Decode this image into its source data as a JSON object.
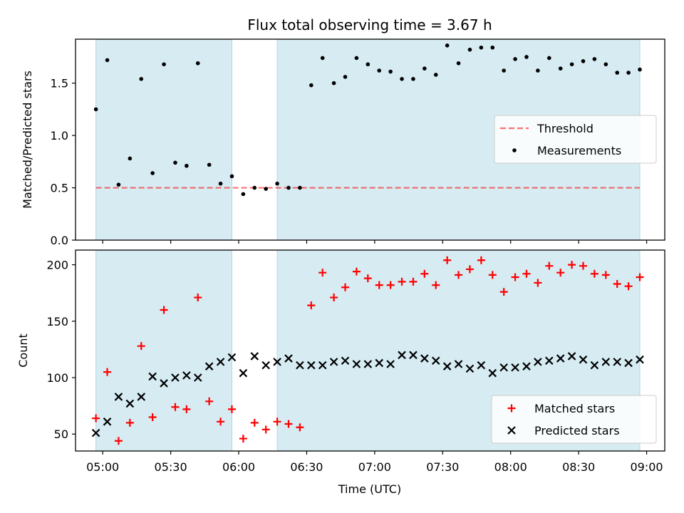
{
  "figure": {
    "title": "Flux total observing time = 3.67 h"
  },
  "colors": {
    "shade": "#add8e6",
    "threshold": "#ff0000",
    "measurement": "#000000",
    "matched": "#ff0000",
    "predicted": "#000000"
  },
  "chart_data": [
    {
      "type": "scatter",
      "ylabel": "Matched/Predicted stars",
      "ylim": [
        0,
        1.92
      ],
      "yticks": [
        0.0,
        0.5,
        1.0,
        1.5
      ],
      "ytick_labels": [
        "0.0",
        "0.5",
        "1.0",
        "1.5"
      ],
      "xlim": [
        "04:48",
        "09:08"
      ],
      "shaded_intervals": [
        [
          "04:57",
          "05:57"
        ],
        [
          "06:17",
          "08:57"
        ]
      ],
      "legend": {
        "placement": "center-right",
        "entries": [
          "Threshold",
          "Measurements"
        ]
      },
      "threshold": {
        "name": "Threshold",
        "value": 0.5,
        "x_range": [
          "04:57",
          "08:57"
        ],
        "style": "dashed"
      },
      "series": [
        {
          "name": "Measurements",
          "marker": "dot",
          "points": [
            [
              "04:57",
              1.25
            ],
            [
              "05:02",
              1.72
            ],
            [
              "05:07",
              0.53
            ],
            [
              "05:12",
              0.78
            ],
            [
              "05:17",
              1.54
            ],
            [
              "05:22",
              0.64
            ],
            [
              "05:27",
              1.68
            ],
            [
              "05:32",
              0.74
            ],
            [
              "05:37",
              0.71
            ],
            [
              "05:42",
              1.69
            ],
            [
              "05:47",
              0.72
            ],
            [
              "05:52",
              0.54
            ],
            [
              "05:57",
              0.61
            ],
            [
              "06:02",
              0.44
            ],
            [
              "06:07",
              0.5
            ],
            [
              "06:12",
              0.49
            ],
            [
              "06:17",
              0.54
            ],
            [
              "06:22",
              0.5
            ],
            [
              "06:27",
              0.5
            ],
            [
              "06:32",
              1.48
            ],
            [
              "06:37",
              1.74
            ],
            [
              "06:42",
              1.5
            ],
            [
              "06:47",
              1.56
            ],
            [
              "06:52",
              1.74
            ],
            [
              "06:57",
              1.68
            ],
            [
              "07:02",
              1.62
            ],
            [
              "07:07",
              1.61
            ],
            [
              "07:12",
              1.54
            ],
            [
              "07:17",
              1.54
            ],
            [
              "07:22",
              1.64
            ],
            [
              "07:27",
              1.58
            ],
            [
              "07:32",
              1.86
            ],
            [
              "07:37",
              1.69
            ],
            [
              "07:42",
              1.82
            ],
            [
              "07:47",
              1.84
            ],
            [
              "07:52",
              1.84
            ],
            [
              "07:57",
              1.62
            ],
            [
              "08:02",
              1.73
            ],
            [
              "08:07",
              1.75
            ],
            [
              "08:12",
              1.62
            ],
            [
              "08:17",
              1.74
            ],
            [
              "08:22",
              1.64
            ],
            [
              "08:27",
              1.68
            ],
            [
              "08:32",
              1.71
            ],
            [
              "08:37",
              1.73
            ],
            [
              "08:42",
              1.68
            ],
            [
              "08:47",
              1.6
            ],
            [
              "08:52",
              1.6
            ],
            [
              "08:57",
              1.63
            ]
          ]
        }
      ]
    },
    {
      "type": "scatter",
      "xlabel": "Time (UTC)",
      "ylabel": "Count",
      "ylim": [
        35,
        213
      ],
      "yticks": [
        50,
        100,
        150,
        200
      ],
      "ytick_labels": [
        "50",
        "100",
        "150",
        "200"
      ],
      "xlim": [
        "04:48",
        "09:08"
      ],
      "xticks": [
        "05:00",
        "05:30",
        "06:00",
        "06:30",
        "07:00",
        "07:30",
        "08:00",
        "08:30",
        "09:00"
      ],
      "xtick_labels": [
        "05:00",
        "05:30",
        "06:00",
        "06:30",
        "07:00",
        "07:30",
        "08:00",
        "08:30",
        "09:00"
      ],
      "shaded_intervals": [
        [
          "04:57",
          "05:57"
        ],
        [
          "06:17",
          "08:57"
        ]
      ],
      "legend": {
        "placement": "lower-right",
        "entries": [
          "Matched stars",
          "Predicted stars"
        ]
      },
      "series": [
        {
          "name": "Matched stars",
          "marker": "plus",
          "points": [
            [
              "04:57",
              64
            ],
            [
              "05:02",
              105
            ],
            [
              "05:07",
              44
            ],
            [
              "05:12",
              60
            ],
            [
              "05:17",
              128
            ],
            [
              "05:22",
              65
            ],
            [
              "05:27",
              160
            ],
            [
              "05:32",
              74
            ],
            [
              "05:37",
              72
            ],
            [
              "05:42",
              171
            ],
            [
              "05:47",
              79
            ],
            [
              "05:52",
              61
            ],
            [
              "05:57",
              72
            ],
            [
              "06:02",
              46
            ],
            [
              "06:07",
              60
            ],
            [
              "06:12",
              54
            ],
            [
              "06:17",
              61
            ],
            [
              "06:22",
              59
            ],
            [
              "06:27",
              56
            ],
            [
              "06:32",
              164
            ],
            [
              "06:37",
              193
            ],
            [
              "06:42",
              171
            ],
            [
              "06:47",
              180
            ],
            [
              "06:52",
              194
            ],
            [
              "06:57",
              188
            ],
            [
              "07:02",
              182
            ],
            [
              "07:07",
              182
            ],
            [
              "07:12",
              185
            ],
            [
              "07:17",
              185
            ],
            [
              "07:22",
              192
            ],
            [
              "07:27",
              182
            ],
            [
              "07:32",
              204
            ],
            [
              "07:37",
              191
            ],
            [
              "07:42",
              196
            ],
            [
              "07:47",
              204
            ],
            [
              "07:52",
              191
            ],
            [
              "07:57",
              176
            ],
            [
              "08:02",
              189
            ],
            [
              "08:07",
              192
            ],
            [
              "08:12",
              184
            ],
            [
              "08:17",
              199
            ],
            [
              "08:22",
              193
            ],
            [
              "08:27",
              200
            ],
            [
              "08:32",
              199
            ],
            [
              "08:37",
              192
            ],
            [
              "08:42",
              191
            ],
            [
              "08:47",
              183
            ],
            [
              "08:52",
              181
            ],
            [
              "08:57",
              189
            ]
          ]
        },
        {
          "name": "Predicted stars",
          "marker": "x",
          "points": [
            [
              "04:57",
              51
            ],
            [
              "05:02",
              61
            ],
            [
              "05:07",
              83
            ],
            [
              "05:12",
              77
            ],
            [
              "05:17",
              83
            ],
            [
              "05:22",
              101
            ],
            [
              "05:27",
              95
            ],
            [
              "05:32",
              100
            ],
            [
              "05:37",
              102
            ],
            [
              "05:42",
              100
            ],
            [
              "05:47",
              110
            ],
            [
              "05:52",
              114
            ],
            [
              "05:57",
              118
            ],
            [
              "06:02",
              104
            ],
            [
              "06:07",
              119
            ],
            [
              "06:12",
              111
            ],
            [
              "06:17",
              114
            ],
            [
              "06:22",
              117
            ],
            [
              "06:27",
              111
            ],
            [
              "06:32",
              111
            ],
            [
              "06:37",
              111
            ],
            [
              "06:42",
              114
            ],
            [
              "06:47",
              115
            ],
            [
              "06:52",
              112
            ],
            [
              "06:57",
              112
            ],
            [
              "07:02",
              113
            ],
            [
              "07:07",
              112
            ],
            [
              "07:12",
              120
            ],
            [
              "07:17",
              120
            ],
            [
              "07:22",
              117
            ],
            [
              "07:27",
              115
            ],
            [
              "07:32",
              110
            ],
            [
              "07:37",
              112
            ],
            [
              "07:42",
              108
            ],
            [
              "07:47",
              111
            ],
            [
              "07:52",
              104
            ],
            [
              "07:57",
              109
            ],
            [
              "08:02",
              109
            ],
            [
              "08:07",
              110
            ],
            [
              "08:12",
              114
            ],
            [
              "08:17",
              115
            ],
            [
              "08:22",
              117
            ],
            [
              "08:27",
              119
            ],
            [
              "08:32",
              116
            ],
            [
              "08:37",
              111
            ],
            [
              "08:42",
              114
            ],
            [
              "08:47",
              114
            ],
            [
              "08:52",
              113
            ],
            [
              "08:57",
              116
            ]
          ]
        }
      ]
    }
  ]
}
